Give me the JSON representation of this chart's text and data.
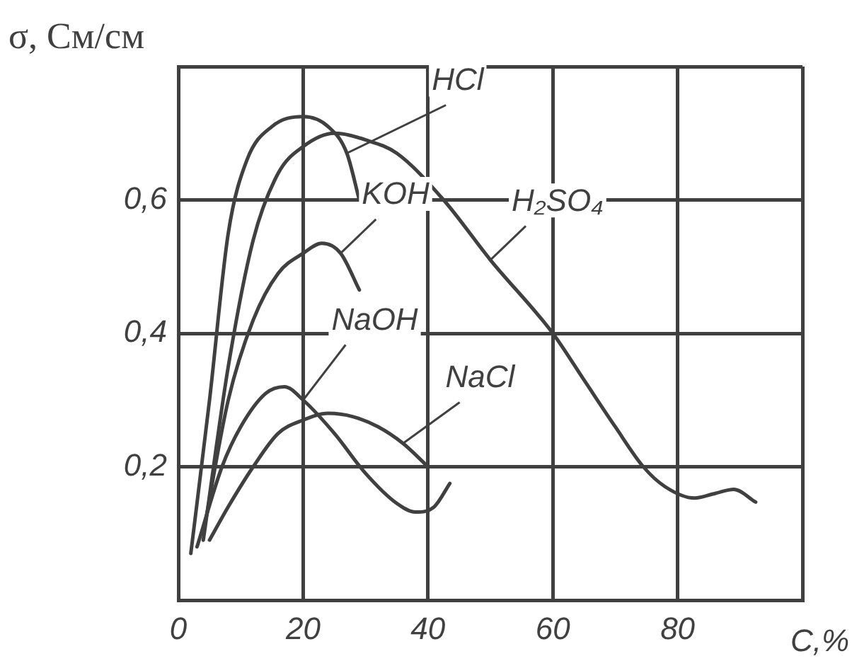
{
  "chart_data": {
    "type": "line",
    "xlabel": "C,%",
    "ylabel": "σ, См/см",
    "xlim": [
      0,
      100
    ],
    "ylim": [
      0,
      0.8
    ],
    "xticks": [
      0,
      20,
      40,
      60,
      80,
      {
        "value": 100,
        "label": null
      }
    ],
    "yticks": [
      {
        "value": 0,
        "label": null
      },
      {
        "value": 0.2,
        "label": "0,2"
      },
      {
        "value": 0.4,
        "label": "0,4"
      },
      {
        "value": 0.6,
        "label": "0,6"
      },
      {
        "value": 0.8,
        "label": null
      }
    ],
    "grid": true,
    "legend": false,
    "marker": "none",
    "line_style": "solid",
    "series": [
      {
        "name": "HCl",
        "color": "#404040",
        "x": [
          2,
          5,
          8,
          11,
          15,
          20,
          24,
          27,
          29
        ],
        "values": [
          0.07,
          0.3,
          0.55,
          0.66,
          0.71,
          0.725,
          0.71,
          0.67,
          0.6
        ]
      },
      {
        "name": "H₂SO₄",
        "color": "#404040",
        "x": [
          4,
          8,
          12,
          16,
          20,
          25,
          30,
          35,
          42.5,
          50,
          60,
          65,
          70,
          74.5,
          78,
          82.7,
          86,
          89,
          92.5
        ],
        "values": [
          0.09,
          0.35,
          0.54,
          0.64,
          0.68,
          0.7,
          0.69,
          0.67,
          0.6,
          0.51,
          0.4,
          0.33,
          0.26,
          0.2,
          0.17,
          0.153,
          0.16,
          0.166,
          0.147
        ]
      },
      {
        "name": "KOH",
        "color": "#404040",
        "x": [
          4,
          8,
          12,
          16,
          20,
          23,
          26,
          29
        ],
        "values": [
          0.1,
          0.3,
          0.42,
          0.49,
          0.52,
          0.535,
          0.52,
          0.465
        ]
      },
      {
        "name": "NaOH",
        "color": "#404040",
        "x": [
          3,
          7,
          10,
          14,
          17,
          20,
          25,
          30,
          35,
          38,
          41,
          43.5
        ],
        "values": [
          0.08,
          0.2,
          0.26,
          0.31,
          0.32,
          0.3,
          0.25,
          0.19,
          0.145,
          0.132,
          0.14,
          0.175
        ]
      },
      {
        "name": "NaCl",
        "color": "#404040",
        "x": [
          5,
          8,
          12,
          16,
          20,
          24,
          28,
          32,
          36,
          40
        ],
        "values": [
          0.09,
          0.14,
          0.2,
          0.25,
          0.27,
          0.28,
          0.275,
          0.26,
          0.235,
          0.2
        ]
      }
    ]
  }
}
